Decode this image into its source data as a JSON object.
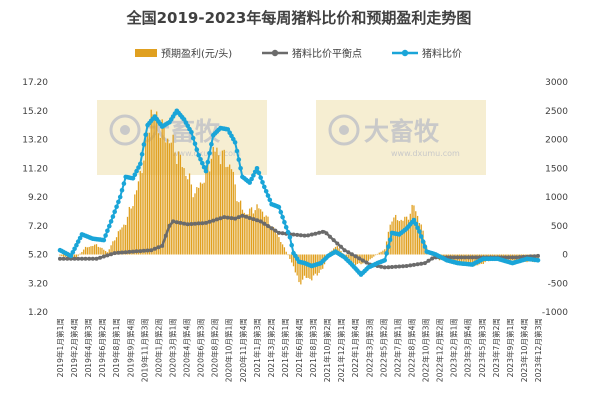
{
  "chart_data": {
    "type": "bar+line",
    "title": "全国2019-2023年每周猪料比价和预期盈利走势图",
    "legend": {
      "position": "top",
      "entries": [
        {
          "name": "预期盈利(元/头)",
          "color": "#e0a020",
          "kind": "bar"
        },
        {
          "name": "猪料比价平衡点",
          "color": "#6b6b6b",
          "kind": "line"
        },
        {
          "name": "猪料比价",
          "color": "#1aa5d8",
          "kind": "line-marker"
        }
      ]
    },
    "y_left": {
      "ylim": [
        1.2,
        17.2
      ],
      "ticks": [
        "1.20",
        "3.20",
        "5.20",
        "7.20",
        "9.20",
        "11.20",
        "13.20",
        "15.20",
        "17.20"
      ]
    },
    "y_right": {
      "ylim": [
        -1000,
        3000
      ],
      "ticks": [
        "-1000",
        "-500",
        "0",
        "500",
        "1000",
        "1500",
        "2000",
        "2500",
        "3000"
      ]
    },
    "x_ticks": [
      "2019年1月第1周",
      "2019年2月第4周",
      "2019年4月第3周",
      "2019年6月第2周",
      "2019年8月第1周",
      "2019年9月第4周",
      "2019年11月第3周",
      "2020年1月第2周",
      "2020年3月第1周",
      "2020年4月第4周",
      "2020年6月第3周",
      "2020年8月第2周",
      "2020年10月第1周",
      "2020年11月第4周",
      "2021年1月第3周",
      "2021年3月第2周",
      "2021年5月第1周",
      "2021年6月第4周",
      "2021年8月第3周",
      "2021年10月第2周",
      "2021年12月第1周",
      "2022年1月第4周",
      "2022年3月第3周",
      "2022年5月第2周",
      "2022年7月第1周",
      "2022年8月第4周",
      "2022年10月第3周",
      "2022年12月第2周",
      "2023年2月第1周",
      "2023年3月第4周",
      "2023年5月第3周",
      "2023年7月第2周",
      "2023年9月第1周",
      "2023年10月第4周",
      "2023年12月第3周"
    ],
    "watermark": {
      "brand": "大畜牧",
      "url": "www.dxumu.com"
    },
    "anchors": {
      "ratio": [
        [
          0,
          5.5
        ],
        [
          6,
          5.1
        ],
        [
          12,
          6.6
        ],
        [
          18,
          6.3
        ],
        [
          24,
          6.2
        ],
        [
          28,
          7.5
        ],
        [
          33,
          9.2
        ],
        [
          36,
          10.6
        ],
        [
          40,
          10.5
        ],
        [
          44,
          11.5
        ],
        [
          48,
          14.2
        ],
        [
          52,
          14.8
        ],
        [
          56,
          14.1
        ],
        [
          60,
          14.4
        ],
        [
          64,
          15.2
        ],
        [
          68,
          14.6
        ],
        [
          72,
          13.7
        ],
        [
          76,
          12.1
        ],
        [
          80,
          11.0
        ],
        [
          84,
          13.5
        ],
        [
          88,
          14.0
        ],
        [
          92,
          13.9
        ],
        [
          96,
          13.0
        ],
        [
          100,
          10.6
        ],
        [
          104,
          10.2
        ],
        [
          108,
          11.2
        ],
        [
          112,
          9.9
        ],
        [
          116,
          8.7
        ],
        [
          120,
          8.5
        ],
        [
          124,
          7.1
        ],
        [
          126,
          6.4
        ],
        [
          128,
          5.3
        ],
        [
          131,
          4.7
        ],
        [
          134,
          4.6
        ],
        [
          138,
          4.4
        ],
        [
          143,
          4.6
        ],
        [
          147,
          5.1
        ],
        [
          151,
          5.4
        ],
        [
          156,
          5.0
        ],
        [
          160,
          4.5
        ],
        [
          165,
          3.8
        ],
        [
          169,
          4.3
        ],
        [
          174,
          4.6
        ],
        [
          178,
          4.8
        ],
        [
          182,
          6.7
        ],
        [
          186,
          6.6
        ],
        [
          190,
          7.0
        ],
        [
          194,
          7.6
        ],
        [
          197,
          6.8
        ],
        [
          201,
          5.4
        ],
        [
          206,
          5.2
        ],
        [
          212,
          4.8
        ],
        [
          218,
          4.6
        ],
        [
          226,
          4.5
        ],
        [
          232,
          4.9
        ],
        [
          240,
          4.9
        ],
        [
          248,
          4.6
        ],
        [
          256,
          4.9
        ],
        [
          262,
          4.8
        ]
      ],
      "breakeven": [
        [
          0,
          4.9
        ],
        [
          20,
          4.9
        ],
        [
          30,
          5.3
        ],
        [
          40,
          5.4
        ],
        [
          50,
          5.5
        ],
        [
          56,
          5.8
        ],
        [
          60,
          7.2
        ],
        [
          62,
          7.5
        ],
        [
          70,
          7.3
        ],
        [
          80,
          7.4
        ],
        [
          90,
          7.8
        ],
        [
          96,
          7.7
        ],
        [
          100,
          7.9
        ],
        [
          110,
          7.5
        ],
        [
          120,
          6.7
        ],
        [
          135,
          6.5
        ],
        [
          145,
          6.8
        ],
        [
          150,
          6.2
        ],
        [
          156,
          5.5
        ],
        [
          163,
          5.0
        ],
        [
          170,
          4.5
        ],
        [
          178,
          4.3
        ],
        [
          190,
          4.4
        ],
        [
          200,
          4.6
        ],
        [
          205,
          5.0
        ],
        [
          215,
          5.0
        ],
        [
          230,
          5.0
        ],
        [
          250,
          5.0
        ],
        [
          262,
          5.1
        ]
      ],
      "profit": [
        [
          0,
          -20
        ],
        [
          8,
          -90
        ],
        [
          14,
          120
        ],
        [
          20,
          170
        ],
        [
          26,
          40
        ],
        [
          32,
          380
        ],
        [
          36,
          560
        ],
        [
          42,
          1100
        ],
        [
          46,
          1700
        ],
        [
          50,
          2500
        ],
        [
          56,
          2150
        ],
        [
          62,
          1900
        ],
        [
          68,
          1500
        ],
        [
          74,
          1050
        ],
        [
          80,
          1400
        ],
        [
          84,
          1800
        ],
        [
          88,
          1750
        ],
        [
          94,
          1500
        ],
        [
          98,
          900
        ],
        [
          102,
          700
        ],
        [
          106,
          800
        ],
        [
          110,
          800
        ],
        [
          114,
          600
        ],
        [
          120,
          300
        ],
        [
          124,
          50
        ],
        [
          128,
          -200
        ],
        [
          131,
          -500
        ],
        [
          134,
          -400
        ],
        [
          138,
          -420
        ],
        [
          144,
          -250
        ],
        [
          148,
          50
        ],
        [
          152,
          150
        ],
        [
          156,
          -20
        ],
        [
          162,
          -180
        ],
        [
          168,
          -130
        ],
        [
          174,
          10
        ],
        [
          178,
          90
        ],
        [
          182,
          650
        ],
        [
          186,
          600
        ],
        [
          190,
          620
        ],
        [
          194,
          850
        ],
        [
          198,
          500
        ],
        [
          202,
          10
        ],
        [
          208,
          -90
        ],
        [
          214,
          -150
        ],
        [
          220,
          -170
        ],
        [
          228,
          -200
        ],
        [
          236,
          -100
        ],
        [
          244,
          -80
        ],
        [
          252,
          -130
        ],
        [
          262,
          -120
        ]
      ]
    }
  }
}
